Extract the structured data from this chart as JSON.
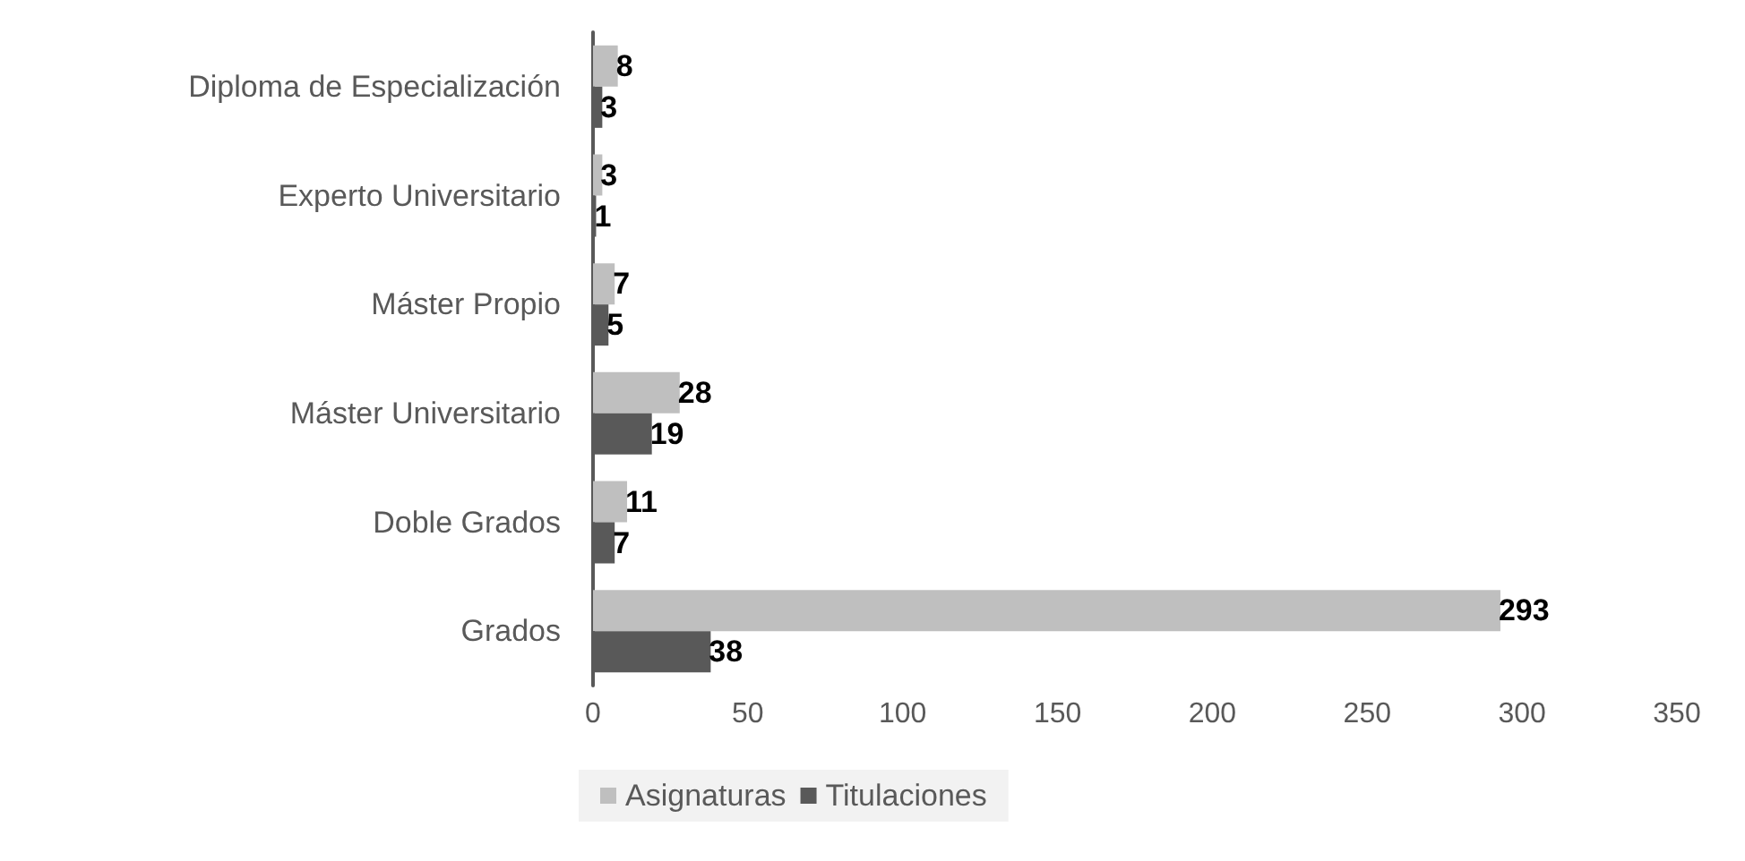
{
  "chart_data": {
    "type": "bar",
    "orientation": "horizontal",
    "categories": [
      "Diploma de Especialización",
      "Experto Universitario",
      "Máster Propio",
      "Máster Universitario",
      "Doble Grados",
      "Grados"
    ],
    "series": [
      {
        "name": "Asignaturas",
        "color": "#bfbfbf",
        "values": [
          8,
          3,
          7,
          28,
          11,
          293
        ]
      },
      {
        "name": "Titulaciones",
        "color": "#595959",
        "values": [
          3,
          1,
          5,
          19,
          7,
          38
        ]
      }
    ],
    "xlim": [
      0,
      350
    ],
    "xticks": [
      0,
      50,
      100,
      150,
      200,
      250,
      300,
      350
    ],
    "grid": false,
    "legend": "bottom",
    "data_labels": true
  }
}
